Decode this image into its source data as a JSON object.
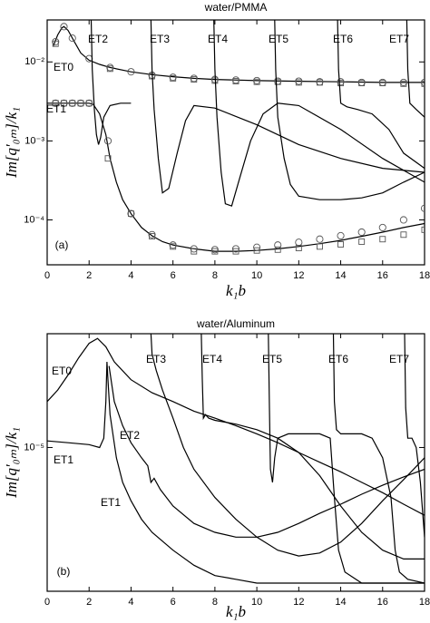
{
  "chart_data": [
    {
      "type": "line",
      "title": "water/PMMA",
      "panel": "(a)",
      "xlabel": "k₁b",
      "ylabel": "Im[q′₀ₘ]/k₁",
      "yscale": "log",
      "xlim": [
        0,
        18
      ],
      "ylim": [
        2.7e-05,
        0.034
      ],
      "xticks": [
        0,
        2,
        4,
        6,
        8,
        10,
        12,
        14,
        16,
        18
      ],
      "yticks": [
        {
          "value": 0.0001,
          "label": "10⁻⁴"
        },
        {
          "value": 0.001,
          "label": "10⁻³"
        },
        {
          "value": 0.01,
          "label": "10⁻²"
        }
      ],
      "annotations": [
        "ET0",
        "ET1",
        "ET2",
        "ET3",
        "ET4",
        "ET5",
        "ET6",
        "ET7"
      ],
      "series": [
        {
          "marker": "line",
          "color": "#000000",
          "x": [
            0.3,
            0.5,
            0.7,
            0.8,
            1,
            1.3,
            1.6,
            2,
            2.5,
            3,
            4,
            5,
            6,
            7,
            8,
            10,
            12,
            14,
            16,
            18
          ],
          "values": [
            0.016,
            0.022,
            0.027,
            0.028,
            0.025,
            0.018,
            0.013,
            0.0105,
            0.0093,
            0.0085,
            0.0075,
            0.0069,
            0.0065,
            0.0062,
            0.006,
            0.0058,
            0.0057,
            0.0056,
            0.0055,
            0.0055
          ]
        },
        {
          "marker": "circle",
          "color": "#555555",
          "x": [
            0.4,
            0.8,
            1.2,
            2,
            3,
            4,
            5,
            6,
            7,
            8,
            9,
            10,
            11,
            12,
            13,
            14,
            15,
            16,
            17,
            18
          ],
          "values": [
            0.018,
            0.028,
            0.02,
            0.011,
            0.0085,
            0.0075,
            0.0068,
            0.0064,
            0.0062,
            0.006,
            0.0059,
            0.0058,
            0.0057,
            0.0057,
            0.0056,
            0.0056,
            0.0055,
            0.0055,
            0.0055,
            0.0055
          ]
        },
        {
          "marker": "square",
          "color": "#555555",
          "x": [
            0.4,
            3,
            5,
            6,
            7,
            8,
            9,
            10,
            11,
            12,
            13,
            14,
            15,
            16,
            17,
            18
          ],
          "values": [
            0.017,
            0.0082,
            0.0066,
            0.0062,
            0.006,
            0.0058,
            0.0057,
            0.0056,
            0.0056,
            0.0055,
            0.0055,
            0.0054,
            0.0054,
            0.0054,
            0.0053,
            0.0053
          ]
        },
        {
          "marker": "line",
          "color": "#000000",
          "x": [
            0,
            1,
            2,
            2.2,
            2.5,
            2.8,
            3,
            3.3,
            3.6,
            4,
            4.5,
            5,
            5.5,
            6,
            7,
            8,
            9,
            10,
            11,
            12,
            13,
            14,
            15,
            16,
            17,
            18
          ],
          "values": [
            0.003,
            0.003,
            0.003,
            0.0029,
            0.0022,
            0.0012,
            0.0006,
            0.0003,
            0.00018,
            0.00012,
            8e-05,
            6.3e-05,
            5.3e-05,
            4.8e-05,
            4.3e-05,
            4e-05,
            4e-05,
            4.1e-05,
            4.3e-05,
            4.6e-05,
            5e-05,
            5.5e-05,
            6.2e-05,
            7e-05,
            8e-05,
            9e-05
          ]
        },
        {
          "marker": "circle",
          "color": "#555555",
          "x": [
            0.4,
            0.8,
            1.2,
            1.6,
            2,
            2.9,
            4,
            5,
            6,
            7,
            8,
            9,
            10,
            11,
            12,
            13,
            14,
            15,
            16,
            17,
            18
          ],
          "values": [
            0.003,
            0.003,
            0.003,
            0.003,
            0.003,
            0.001,
            0.00012,
            6.5e-05,
            4.8e-05,
            4.3e-05,
            4.2e-05,
            4.3e-05,
            4.5e-05,
            4.8e-05,
            5.2e-05,
            5.7e-05,
            6.3e-05,
            7e-05,
            8e-05,
            0.0001,
            0.00014
          ]
        },
        {
          "marker": "square",
          "color": "#555555",
          "x": [
            0.4,
            0.8,
            1.2,
            1.6,
            2,
            2.9,
            4,
            5,
            6,
            7,
            8,
            9,
            10,
            11,
            12,
            13,
            14,
            15,
            16,
            17,
            18
          ],
          "values": [
            0.003,
            0.003,
            0.003,
            0.003,
            0.003,
            0.0006,
            0.00012,
            6.2e-05,
            4.6e-05,
            4e-05,
            4e-05,
            4e-05,
            4.1e-05,
            4.2e-05,
            4.4e-05,
            4.6e-05,
            4.9e-05,
            5.3e-05,
            5.7e-05,
            6.5e-05,
            7.5e-05
          ]
        },
        {
          "marker": "line",
          "color": "#000000",
          "x": [
            2.1,
            2.15,
            2.25,
            2.35,
            2.45,
            2.55,
            2.7,
            3,
            3.5,
            4
          ],
          "values": [
            0.034,
            0.008,
            0.0025,
            0.0012,
            0.0009,
            0.0011,
            0.002,
            0.0028,
            0.003,
            0.003
          ]
        },
        {
          "marker": "line",
          "color": "#000000",
          "x": [
            4.95,
            5,
            5.1,
            5.3,
            5.5,
            5.8,
            6.2,
            6.6,
            7,
            8,
            10,
            12,
            14,
            16,
            18
          ],
          "values": [
            0.034,
            0.008,
            0.0025,
            0.0006,
            0.00022,
            0.00025,
            0.0007,
            0.0018,
            0.0028,
            0.0026,
            0.0016,
            0.0009,
            0.0006,
            0.00045,
            0.0004
          ]
        },
        {
          "marker": "line",
          "color": "#000000",
          "x": [
            7.95,
            8,
            8.1,
            8.3,
            8.5,
            8.8,
            9.2,
            9.7,
            10.3,
            11,
            12,
            14,
            16,
            18
          ],
          "values": [
            0.034,
            0.008,
            0.002,
            0.0004,
            0.00016,
            0.00015,
            0.00035,
            0.001,
            0.0022,
            0.003,
            0.0028,
            0.0014,
            0.0006,
            0.0003
          ]
        },
        {
          "marker": "line",
          "color": "#000000",
          "x": [
            10.85,
            10.9,
            11,
            11.3,
            11.6,
            12,
            13,
            14,
            15,
            16,
            17,
            18
          ],
          "values": [
            0.034,
            0.008,
            0.002,
            0.0006,
            0.00028,
            0.0002,
            0.00018,
            0.00018,
            0.00019,
            0.00022,
            0.0003,
            0.0004
          ]
        },
        {
          "marker": "line",
          "color": "#000000",
          "x": [
            13.85,
            13.9,
            14,
            14.3,
            14.8,
            15.5,
            16.3,
            17,
            18
          ],
          "values": [
            0.034,
            0.008,
            0.003,
            0.0027,
            0.0025,
            0.0022,
            0.0014,
            0.0007,
            0.00045
          ]
        },
        {
          "marker": "line",
          "color": "#000000",
          "x": [
            17.15,
            17.2,
            17.3,
            17.6,
            18
          ],
          "values": [
            0.034,
            0.008,
            0.003,
            0.0025,
            0.002
          ]
        }
      ]
    },
    {
      "type": "line",
      "title": "water/Aluminum",
      "panel": "(b)",
      "xlabel": "k₁b",
      "ylabel": "Im[q′₀ₘ]/k₁",
      "yscale": "log",
      "xlim": [
        0,
        18
      ],
      "ylim": [
        2.3e-06,
        3.2e-05
      ],
      "xticks": [
        0,
        2,
        4,
        6,
        8,
        10,
        12,
        14,
        16,
        18
      ],
      "yticks": [
        {
          "value": 1e-05,
          "label": "10⁻⁵"
        }
      ],
      "annotations": [
        "ET0",
        "ET1",
        "ET2",
        "ET1",
        "ET3",
        "ET4",
        "ET5",
        "ET6",
        "ET7"
      ],
      "series": [
        {
          "marker": "line",
          "color": "#000000",
          "x": [
            0,
            0.5,
            1,
            1.5,
            2,
            2.4,
            2.8,
            3.2,
            4,
            5,
            6,
            7,
            8,
            9,
            10,
            11,
            12,
            13,
            14,
            15,
            16,
            17,
            18
          ],
          "values": [
            1.6e-05,
            1.8e-05,
            2.1e-05,
            2.5e-05,
            2.9e-05,
            3.05e-05,
            2.8e-05,
            2.4e-05,
            2e-05,
            1.75e-05,
            1.6e-05,
            1.45e-05,
            1.35e-05,
            1.25e-05,
            1.15e-05,
            1.05e-05,
            9.5e-06,
            8.6e-06,
            7.8e-06,
            7e-06,
            6.3e-06,
            5.6e-06,
            5e-06
          ]
        },
        {
          "marker": "line",
          "color": "#000000",
          "x": [
            0,
            1,
            2,
            2.5,
            2.7,
            2.8,
            2.85,
            2.9,
            3,
            3.3,
            3.6,
            4,
            4.5,
            5,
            6,
            7,
            8,
            9,
            10,
            11,
            12,
            13,
            14,
            15,
            16,
            17,
            18
          ],
          "values": [
            1.07e-05,
            1.05e-05,
            1.03e-05,
            1e-05,
            1.1e-05,
            1.6e-05,
            2.4e-05,
            2e-05,
            1.4e-05,
            9e-06,
            7e-06,
            5.8e-06,
            4.8e-06,
            4.2e-06,
            3.5e-06,
            3e-06,
            2.7e-06,
            2.6e-06,
            2.5e-06,
            2.5e-06,
            2.5e-06,
            2.5e-06,
            2.5e-06,
            2.5e-06,
            2.5e-06,
            2.5e-06,
            2.5e-06
          ]
        },
        {
          "marker": "line",
          "color": "#000000",
          "x": [
            2.95,
            3.2,
            3.6,
            4,
            4.5,
            4.8,
            4.95,
            5.1,
            5.4,
            6,
            7,
            8,
            9,
            10,
            11,
            12,
            13,
            14,
            15,
            16,
            17,
            18
          ],
          "values": [
            2.3e-05,
            1.6e-05,
            1.25e-05,
            1.05e-05,
            9e-06,
            8.3e-06,
            7e-06,
            7.3e-06,
            6.5e-06,
            5.5e-06,
            4.6e-06,
            4.2e-06,
            4e-06,
            4e-06,
            4.2e-06,
            4.6e-06,
            5.1e-06,
            5.6e-06,
            6.2e-06,
            6.8e-06,
            7.4e-06,
            8e-06
          ]
        },
        {
          "marker": "line",
          "color": "#000000",
          "x": [
            4.95,
            5,
            5.2,
            5.5,
            6,
            6.5,
            7,
            8,
            9,
            10,
            11,
            12,
            13,
            14,
            15,
            16,
            17,
            18
          ],
          "values": [
            3.2e-05,
            2.6e-05,
            2.2e-05,
            1.8e-05,
            1.35e-05,
            1e-05,
            8e-06,
            6e-06,
            4.8e-06,
            4e-06,
            3.5e-06,
            3.3e-06,
            3.4e-06,
            3.8e-06,
            4.6e-06,
            5.8e-06,
            7.2e-06,
            9e-06
          ]
        },
        {
          "marker": "line",
          "color": "#000000",
          "x": [
            7.35,
            7.4,
            7.45,
            7.55,
            7.7,
            8,
            9,
            10,
            11,
            12,
            13,
            14,
            15,
            16,
            17,
            18
          ],
          "values": [
            3.2e-05,
            2e-05,
            1.35e-05,
            1.4e-05,
            1.35e-05,
            1.32e-05,
            1.27e-05,
            1.2e-05,
            1.1e-05,
            9.5e-06,
            7.5e-06,
            5.5e-06,
            4.2e-06,
            3.5e-06,
            3.2e-06,
            3.2e-06
          ]
        },
        {
          "marker": "line",
          "color": "#000000",
          "x": [
            10.55,
            10.6,
            10.65,
            10.75,
            10.85,
            11,
            11.5,
            12,
            13,
            13.5,
            13.7,
            13.9,
            14.2,
            15,
            16,
            17,
            18
          ],
          "values": [
            3.2e-05,
            1.5e-05,
            8e-06,
            7e-06,
            9e-06,
            1.1e-05,
            1.15e-05,
            1.15e-05,
            1.15e-05,
            1.1e-05,
            6e-06,
            3.5e-06,
            2.8e-06,
            2.5e-06,
            2.5e-06,
            2.5e-06,
            2.5e-06
          ]
        },
        {
          "marker": "line",
          "color": "#000000",
          "x": [
            13.65,
            13.7,
            13.8,
            14,
            14.5,
            15,
            15.5,
            16,
            16.4,
            16.6,
            16.8,
            17.2,
            18
          ],
          "values": [
            3.2e-05,
            1.6e-05,
            1.2e-05,
            1.15e-05,
            1.15e-05,
            1.15e-05,
            1.1e-05,
            9e-06,
            6e-06,
            3.5e-06,
            2.8e-06,
            2.6e-06,
            2.5e-06
          ]
        },
        {
          "marker": "line",
          "color": "#000000",
          "x": [
            17.05,
            17.1,
            17.2,
            17.4,
            17.6,
            17.8,
            18
          ],
          "values": [
            3.2e-05,
            1.5e-05,
            1.1e-05,
            1.1e-05,
            1e-05,
            7e-06,
            4e-06
          ]
        }
      ]
    }
  ]
}
